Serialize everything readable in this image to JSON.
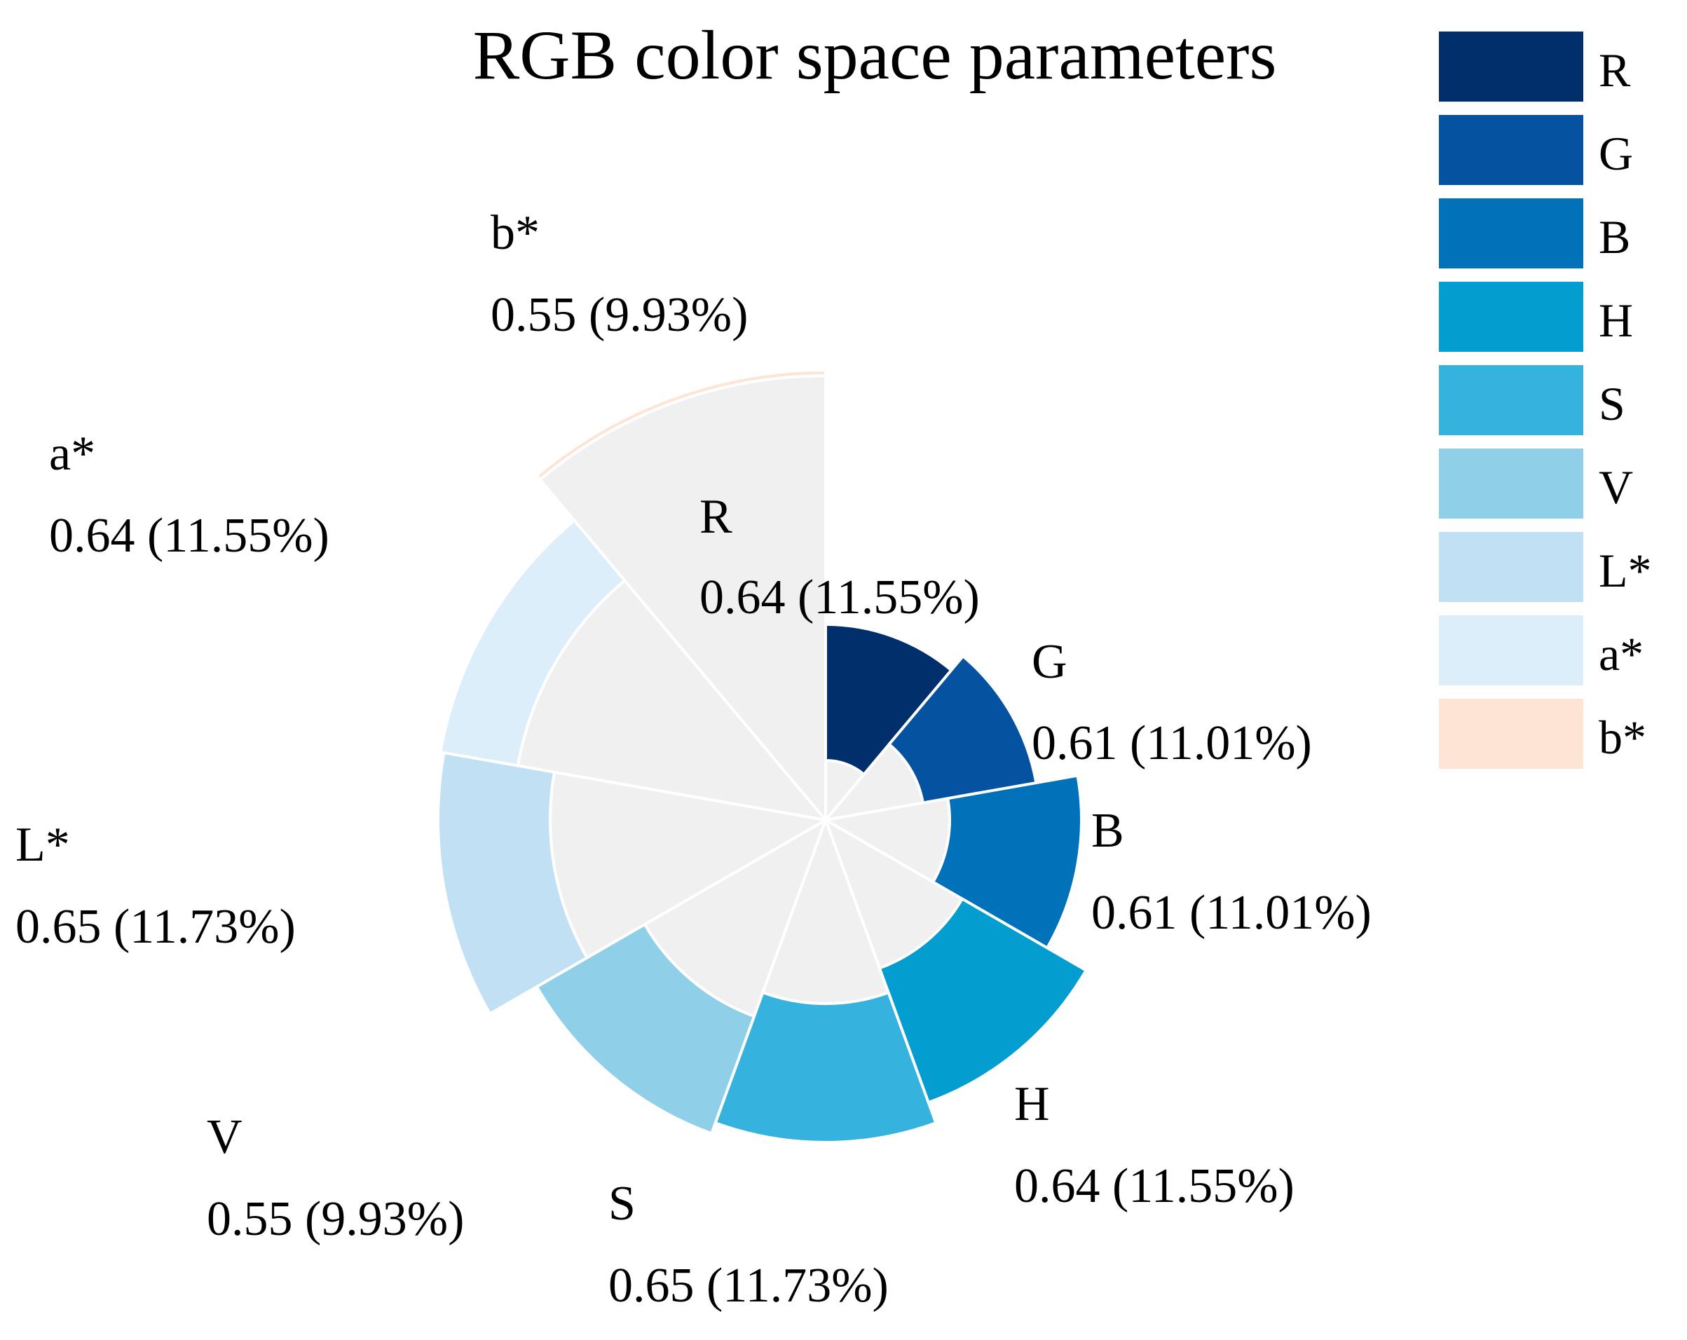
{
  "chart_data": {
    "type": "nightingale-rose",
    "title": "RGB color space parameters",
    "legend_position": "top-right",
    "track_color": "#f0f0f0",
    "categories": [
      "R",
      "G",
      "B",
      "H",
      "S",
      "V",
      "L*",
      "a*",
      "b*"
    ],
    "values": [
      0.64,
      0.61,
      0.61,
      0.64,
      0.65,
      0.55,
      0.65,
      0.64,
      0.55
    ],
    "percent_labels": [
      "(11.55%)",
      "(11.01%)",
      "(11.01%)",
      "(11.55%)",
      "(11.73%)",
      "(9.93%)",
      "(11.73%)",
      "(11.55%)",
      "(9.93%)"
    ],
    "colors": [
      "#012f6b",
      "#0552a1",
      "#0171b9",
      "#039dd0",
      "#35b2dd",
      "#8fd0e8",
      "#c2e0f4",
      "#ddeefb",
      "#fde4d5"
    ]
  }
}
